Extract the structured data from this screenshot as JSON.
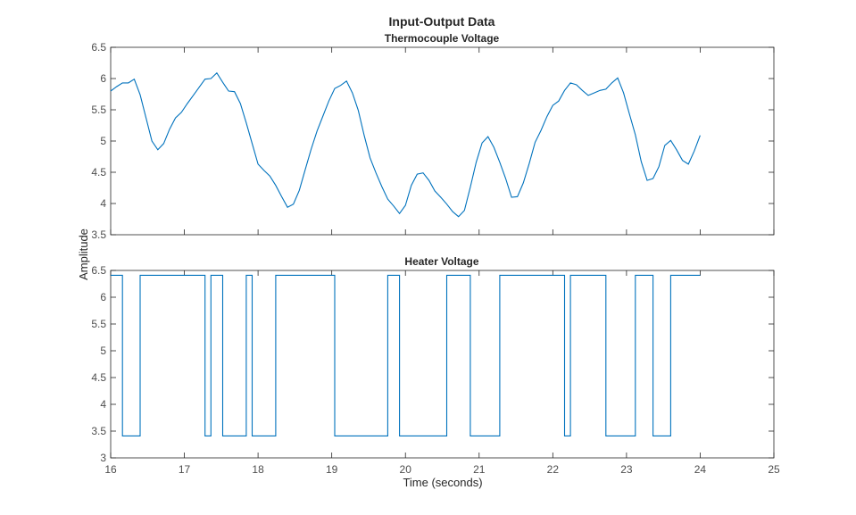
{
  "chart_data": [
    {
      "type": "line",
      "figure_title": "Input-Output Data",
      "title": "Thermocouple Voltage",
      "ylabel": "Amplitude",
      "xlabel": "Time (seconds)",
      "xlim": [
        16,
        25
      ],
      "ylim": [
        3.5,
        6.5
      ],
      "xticks": [
        16,
        17,
        18,
        19,
        20,
        21,
        22,
        23,
        24,
        25
      ],
      "yticks": [
        3.5,
        4,
        4.5,
        5,
        5.5,
        6,
        6.5
      ],
      "color": "#0072BD",
      "t0": 16,
      "dt": 0.08,
      "values": [
        5.8,
        5.87,
        5.93,
        5.93,
        5.99,
        5.74,
        5.37,
        5.0,
        4.86,
        4.96,
        5.19,
        5.37,
        5.46,
        5.6,
        5.73,
        5.86,
        5.99,
        6.0,
        6.09,
        5.94,
        5.8,
        5.79,
        5.6,
        5.29,
        4.96,
        4.63,
        4.53,
        4.44,
        4.29,
        4.11,
        3.94,
        3.99,
        4.21,
        4.54,
        4.87,
        5.16,
        5.4,
        5.64,
        5.84,
        5.89,
        5.96,
        5.77,
        5.49,
        5.09,
        4.73,
        4.49,
        4.27,
        4.07,
        3.96,
        3.84,
        3.97,
        4.29,
        4.47,
        4.49,
        4.37,
        4.2,
        4.1,
        3.99,
        3.87,
        3.79,
        3.89,
        4.26,
        4.66,
        4.97,
        5.07,
        4.9,
        4.66,
        4.4,
        4.1,
        4.11,
        4.33,
        4.64,
        4.98,
        5.17,
        5.39,
        5.57,
        5.64,
        5.81,
        5.93,
        5.9,
        5.81,
        5.73,
        5.77,
        5.81,
        5.83,
        5.93,
        6.01,
        5.77,
        5.43,
        5.1,
        4.67,
        4.37,
        4.4,
        4.59,
        4.93,
        5.01,
        4.86,
        4.69,
        4.63,
        4.84,
        5.09
      ]
    },
    {
      "type": "line",
      "title": "Heater Voltage",
      "xlim": [
        16,
        25
      ],
      "ylim": [
        3,
        6.5
      ],
      "xticks": [
        16,
        17,
        18,
        19,
        20,
        21,
        22,
        23,
        24,
        25
      ],
      "yticks": [
        3,
        3.5,
        4,
        4.5,
        5,
        5.5,
        6,
        6.5
      ],
      "color": "#0072BD",
      "high": 6.41,
      "low": 3.41,
      "start_level": "high",
      "switch_times": [
        16.16,
        16.4,
        17.28,
        17.36,
        17.52,
        17.84,
        17.92,
        18.24,
        19.04,
        19.76,
        19.92,
        20.56,
        20.88,
        21.28,
        22.16,
        22.24,
        22.72,
        23.12,
        23.36,
        23.6
      ],
      "end_time": 24
    }
  ]
}
